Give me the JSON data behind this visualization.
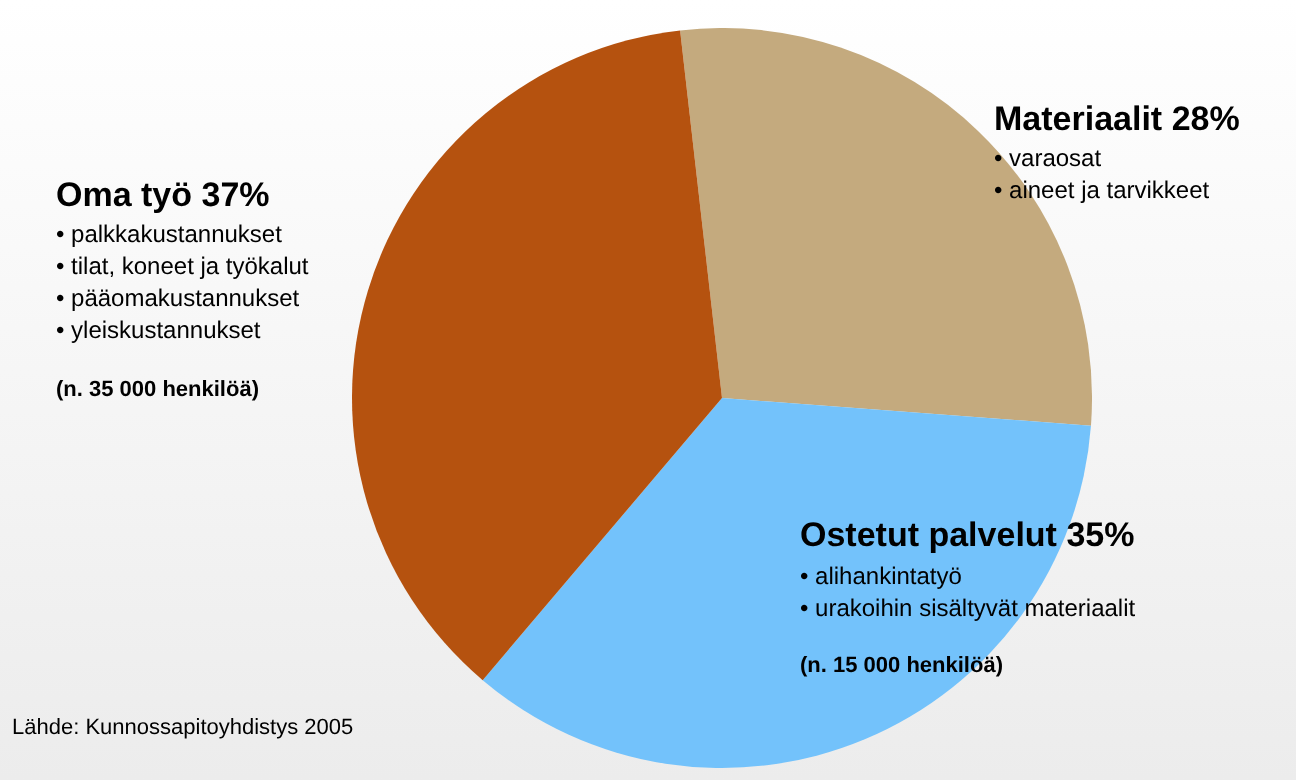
{
  "chart_data": {
    "type": "pie",
    "categories": [
      "Materiaalit",
      "Ostetut palvelut",
      "Oma työ"
    ],
    "values": [
      28,
      35,
      37
    ],
    "colors": [
      "#c4aa7e",
      "#73c2fb",
      "#b5520f"
    ],
    "value_labels": [
      "28%",
      "35%",
      "37%"
    ],
    "legend": false,
    "annotations": [
      "• varaosat",
      "• aineet ja tarvikkeet",
      "• alihankintatyö",
      "• urakoihin sisältyvät materiaalit",
      "(n. 15 000 henkilöä)",
      "• palkkakustannukset",
      "• tilat, koneet ja työkalut",
      "• pääomakustannukset",
      "• yleiskustannukset",
      "(n. 35 000 henkilöä)",
      "Lähde: Kunnossapitoyhdistys 2005"
    ]
  }
}
